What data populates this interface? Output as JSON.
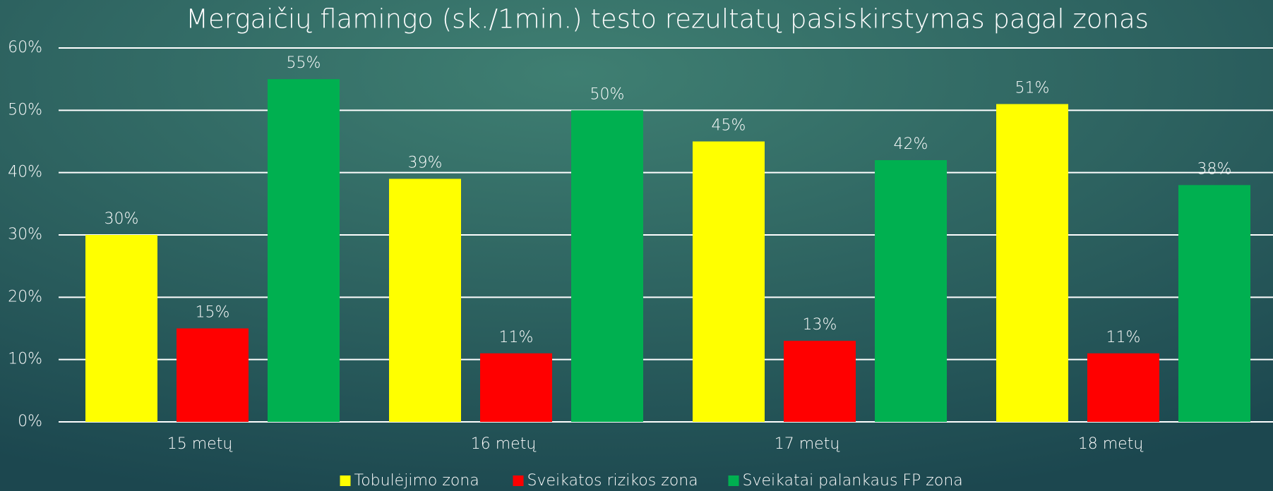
{
  "chart_data": {
    "type": "bar",
    "title": "Mergaičių flamingo (sk./1min.) testo rezultatų pasiskirstymas pagal zonas",
    "categories": [
      "15 metų",
      "16 metų",
      "17 metų",
      "18 metų"
    ],
    "series": [
      {
        "name": "Tobulėjimo zona",
        "color": "#ffff00",
        "values": [
          30,
          39,
          45,
          51
        ],
        "value_labels": [
          "30%",
          "39%",
          "45%",
          "51%"
        ]
      },
      {
        "name": "Sveikatos rizikos zona",
        "color": "#ff0000",
        "values": [
          15,
          11,
          13,
          11
        ],
        "value_labels": [
          "15%",
          "11%",
          "13%",
          "11%"
        ]
      },
      {
        "name": "Sveikatai palankaus FP zona",
        "color": "#00b050",
        "values": [
          55,
          50,
          42,
          38
        ],
        "value_labels": [
          "55%",
          "50%",
          "42%",
          "38%"
        ]
      }
    ],
    "ylim": [
      0,
      60
    ],
    "yticks": [
      {
        "value": 0,
        "label": "0%"
      },
      {
        "value": 10,
        "label": "10%"
      },
      {
        "value": 20,
        "label": "20%"
      },
      {
        "value": 30,
        "label": "30%"
      },
      {
        "value": 40,
        "label": "40%"
      },
      {
        "value": 50,
        "label": "50%"
      },
      {
        "value": 60,
        "label": "60%"
      }
    ],
    "grid": true,
    "legend": "bottom"
  }
}
